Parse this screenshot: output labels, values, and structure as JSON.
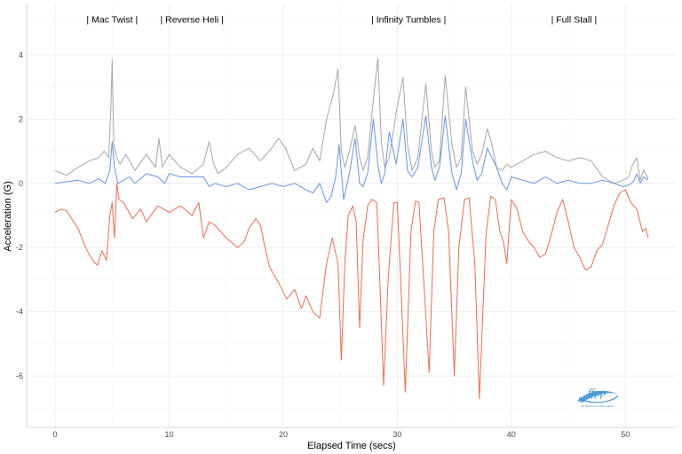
{
  "chart_data": {
    "type": "line",
    "title": "",
    "xlabel": "Elapsed Time (secs)",
    "ylabel": "Acceleration (G)",
    "xlim": [
      -2.5,
      54.5
    ],
    "ylim": [
      -7.6,
      5.6
    ],
    "x_ticks": [
      0,
      10,
      20,
      30,
      40,
      50
    ],
    "y_ticks": [
      -6,
      -4,
      -2,
      0,
      2,
      4
    ],
    "grid": true,
    "legend": "none",
    "annotations": [
      {
        "text": "| Mac Twist |",
        "x": 5.0,
        "y": 5.0
      },
      {
        "text": "| Reverse Heli |",
        "x": 12.0,
        "y": 5.0
      },
      {
        "text": "| Infinity Tumbles |",
        "x": 31.0,
        "y": 5.0
      },
      {
        "text": "| Full Stall |",
        "x": 45.5,
        "y": 5.0
      }
    ],
    "series": [
      {
        "color": "#a6a6a6",
        "x": [
          0,
          1,
          2,
          3,
          3.8,
          4.3,
          4.7,
          4.9,
          5.0,
          5.15,
          5.4,
          5.7,
          6.2,
          7,
          8,
          8.8,
          9.1,
          9.4,
          10,
          11,
          12,
          13,
          13.5,
          13.9,
          14.3,
          15,
          16,
          17,
          18,
          19,
          19.6,
          20.2,
          21,
          22,
          22.6,
          23.2,
          23.8,
          24.4,
          24.8,
          25.1,
          25.4,
          25.8,
          26.3,
          26.7,
          27,
          27.4,
          27.9,
          28.3,
          28.6,
          28.9,
          29.3,
          29.9,
          30.5,
          30.9,
          31.3,
          31.8,
          32.5,
          33.0,
          33.3,
          33.7,
          34.2,
          34.8,
          35.2,
          35.6,
          36.0,
          36.6,
          37.0,
          37.4,
          37.9,
          38.3,
          38.7,
          39.2,
          39.6,
          40,
          41,
          42,
          43,
          44,
          45,
          46,
          47,
          48,
          49,
          49.8,
          50.3,
          50.6,
          51.0,
          51.3,
          51.6,
          52
        ],
        "y": [
          0.4,
          0.25,
          0.5,
          0.7,
          0.8,
          1.0,
          0.8,
          2.5,
          3.85,
          1.2,
          0.8,
          0.6,
          0.9,
          0.4,
          0.9,
          0.5,
          1.4,
          0.5,
          0.9,
          0.5,
          0.3,
          0.6,
          1.3,
          0.6,
          0.3,
          0.5,
          0.9,
          1.1,
          0.7,
          1.1,
          1.4,
          1.1,
          0.4,
          0.6,
          1.1,
          0.7,
          2.0,
          2.8,
          3.55,
          1.0,
          0.5,
          1.0,
          1.8,
          0.8,
          0.4,
          0.8,
          2.6,
          3.9,
          1.3,
          0.5,
          0.8,
          2.2,
          3.3,
          1.2,
          0.4,
          0.8,
          3.1,
          1.0,
          0.5,
          0.7,
          3.35,
          1.2,
          0.5,
          0.8,
          3.0,
          1.0,
          0.6,
          0.9,
          1.7,
          1.2,
          0.5,
          0.4,
          0.6,
          0.5,
          0.7,
          0.9,
          1.0,
          0.8,
          0.7,
          0.8,
          0.7,
          0.2,
          0.0,
          0.1,
          0.2,
          0.55,
          0.8,
          0.1,
          0.4,
          0.15
        ]
      },
      {
        "color": "#6495ed",
        "x": [
          0,
          1,
          2,
          3,
          3.8,
          4.4,
          4.8,
          5.0,
          5.2,
          5.5,
          6,
          6.5,
          7,
          8,
          9,
          9.6,
          10,
          11,
          12,
          13,
          13.5,
          14,
          15,
          16,
          17,
          18,
          19,
          20,
          21,
          22,
          22.6,
          23.2,
          23.8,
          24.2,
          24.6,
          24.9,
          25.3,
          25.8,
          26.3,
          26.7,
          27,
          27.4,
          27.9,
          28.3,
          28.6,
          28.9,
          29.3,
          29.9,
          30.5,
          30.9,
          31.3,
          31.8,
          32.5,
          33.0,
          33.3,
          33.7,
          34.2,
          34.8,
          35.2,
          35.6,
          36.0,
          36.6,
          37.0,
          37.4,
          37.9,
          38.3,
          38.7,
          39.2,
          39.6,
          40,
          41,
          42,
          43,
          44,
          45,
          46,
          47,
          48,
          49,
          49.8,
          50.3,
          50.7,
          51.0,
          51.3,
          51.6,
          52
        ],
        "y": [
          0.0,
          0.05,
          0.1,
          0.0,
          0.15,
          0.0,
          0.4,
          1.3,
          0.5,
          0.0,
          0.1,
          0.2,
          0.0,
          0.3,
          0.2,
          0.0,
          0.3,
          0.2,
          0.2,
          0.2,
          -0.1,
          0.0,
          -0.1,
          0.0,
          -0.2,
          -0.1,
          0.0,
          -0.1,
          0.0,
          -0.2,
          -0.3,
          0.0,
          -0.6,
          -0.4,
          0.2,
          1.2,
          -0.5,
          0.3,
          1.4,
          0.0,
          -0.1,
          0.3,
          2.0,
          0.6,
          0.0,
          0.3,
          1.6,
          0.6,
          2.0,
          0.4,
          0.2,
          0.5,
          2.1,
          0.5,
          0.1,
          0.5,
          2.1,
          0.3,
          -0.2,
          0.3,
          2.0,
          0.7,
          0.1,
          0.3,
          1.1,
          0.8,
          0.5,
          0.0,
          -0.2,
          0.2,
          0.1,
          0.0,
          0.2,
          0.0,
          0.1,
          0.0,
          0.0,
          0.1,
          0.0,
          -0.1,
          -0.05,
          0.05,
          0.3,
          0.0,
          0.2,
          0.1
        ]
      },
      {
        "color": "#f46a4e",
        "x": [
          0,
          0.5,
          1,
          2,
          2.8,
          3.3,
          3.7,
          4.1,
          4.5,
          4.8,
          5.0,
          5.2,
          5.4,
          5.6,
          6,
          6.8,
          7.5,
          8,
          9,
          10,
          11,
          12,
          12.6,
          13,
          13.5,
          14,
          15,
          16,
          16.6,
          17,
          17.6,
          18,
          18.4,
          18.8,
          19.1,
          19.6,
          20.3,
          21,
          21.6,
          22,
          22.6,
          23.2,
          23.8,
          24.3,
          24.8,
          25.1,
          25.4,
          25.7,
          26.1,
          26.4,
          26.7,
          27.0,
          27.4,
          27.8,
          28.2,
          28.5,
          28.8,
          29.2,
          29.7,
          30.0,
          30.3,
          30.7,
          31.2,
          31.6,
          31.9,
          32.4,
          32.8,
          33.2,
          33.6,
          34.1,
          34.5,
          35.0,
          35.4,
          35.9,
          36.3,
          36.8,
          37.2,
          37.8,
          38.2,
          38.6,
          39.0,
          39.3,
          39.6,
          40,
          40.5,
          41,
          41.5,
          42,
          42.5,
          43,
          43.5,
          44,
          44.5,
          45,
          45.5,
          46,
          46.5,
          47,
          47.5,
          48,
          48.5,
          49,
          49.5,
          50,
          50.5,
          51,
          51.5,
          51.8,
          52
        ],
        "y": [
          -0.9,
          -0.8,
          -0.85,
          -1.4,
          -2.1,
          -2.4,
          -2.55,
          -2.1,
          -2.4,
          -1.0,
          -0.6,
          -1.7,
          0.0,
          -0.5,
          -0.6,
          -1.1,
          -0.8,
          -1.2,
          -0.7,
          -0.9,
          -0.7,
          -1.0,
          -0.6,
          -1.7,
          -1.2,
          -1.3,
          -1.7,
          -2.0,
          -1.8,
          -1.4,
          -1.1,
          -1.3,
          -2.0,
          -2.6,
          -2.8,
          -3.1,
          -3.6,
          -3.3,
          -3.9,
          -3.5,
          -4.0,
          -4.2,
          -2.5,
          -1.7,
          -2.5,
          -5.5,
          -2.5,
          -1.0,
          -0.7,
          -1.2,
          -4.5,
          -1.8,
          -0.7,
          -0.5,
          -0.6,
          -3.3,
          -6.3,
          -3.0,
          -0.6,
          -0.6,
          -3.0,
          -6.5,
          -1.5,
          -0.55,
          -0.6,
          -3.5,
          -5.9,
          -1.5,
          -0.5,
          -0.45,
          -1.5,
          -6.0,
          -2.0,
          -0.5,
          -0.45,
          -2.5,
          -6.7,
          -1.5,
          -0.4,
          -0.5,
          -1.5,
          -1.8,
          -2.5,
          -0.5,
          -0.8,
          -1.5,
          -1.8,
          -2.0,
          -2.3,
          -2.2,
          -1.6,
          -0.9,
          -0.5,
          -1.2,
          -2.0,
          -2.3,
          -2.7,
          -2.6,
          -2.1,
          -1.9,
          -1.3,
          -0.7,
          -0.3,
          -0.2,
          -0.6,
          -0.8,
          -1.5,
          -1.4,
          -1.7
        ]
      }
    ]
  },
  "logo": {
    "main": "ffpp",
    "sub": "the flight of the paper plane"
  }
}
